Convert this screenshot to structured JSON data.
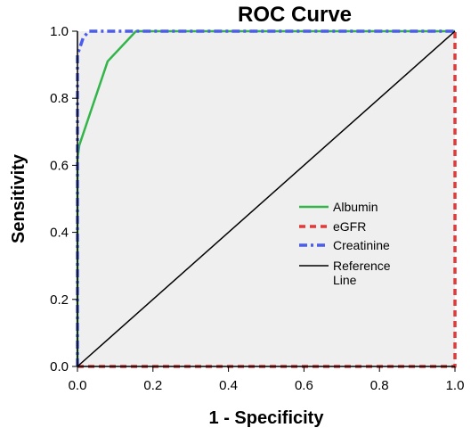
{
  "chart_data": {
    "type": "line",
    "title": "ROC Curve",
    "xlabel": "1 - Specificity",
    "ylabel": "Sensitivity",
    "xlim": [
      0.0,
      1.0
    ],
    "ylim": [
      0.0,
      1.0
    ],
    "x_ticks": [
      "0.0",
      "0.2",
      "0.4",
      "0.6",
      "0.8",
      "1.0"
    ],
    "y_ticks": [
      "0.0",
      "0.2",
      "0.4",
      "0.6",
      "0.8",
      "1.0"
    ],
    "grid": false,
    "legend_position": "right",
    "plot_background": "#efefef",
    "series": [
      {
        "name": "Albumin",
        "color": "#33b54a",
        "style": "solid",
        "points": [
          [
            0.0,
            0.0
          ],
          [
            0.0,
            0.62
          ],
          [
            0.005,
            0.66
          ],
          [
            0.08,
            0.91
          ],
          [
            0.155,
            1.0
          ],
          [
            1.0,
            1.0
          ]
        ]
      },
      {
        "name": "eGFR",
        "color": "#e03a3a",
        "style": "dashed",
        "points": [
          [
            0.0,
            0.0
          ],
          [
            1.0,
            0.0
          ],
          [
            1.0,
            1.0
          ]
        ]
      },
      {
        "name": "Creatinine",
        "color": "#4a5cf0",
        "style": "dashdot",
        "points": [
          [
            0.0,
            0.0
          ],
          [
            0.0,
            0.93
          ],
          [
            0.015,
            0.98
          ],
          [
            0.03,
            1.0
          ],
          [
            1.0,
            1.0
          ]
        ]
      },
      {
        "name": "Reference Line",
        "name_lines": [
          "Reference",
          "Line"
        ],
        "color": "#000000",
        "style": "solid",
        "points": [
          [
            0.0,
            0.0
          ],
          [
            1.0,
            1.0
          ]
        ]
      }
    ]
  }
}
